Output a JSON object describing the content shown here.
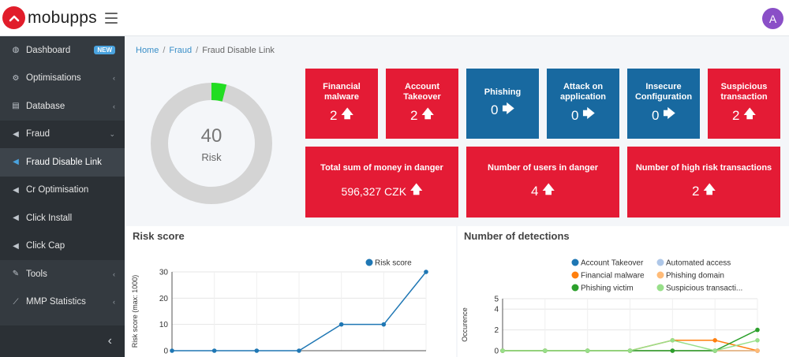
{
  "brand": {
    "name": "mobupps",
    "avatar_initial": "A",
    "accent": "#e11d2a",
    "avatar_color": "#8a4fc7"
  },
  "sidebar": {
    "items": [
      {
        "label": "Dashboard",
        "icon": "dashboard-icon",
        "badge": "NEW"
      },
      {
        "label": "Optimisations",
        "icon": "cogs-icon",
        "arrow": "chevron-left"
      },
      {
        "label": "Database",
        "icon": "database-icon",
        "arrow": "chevron-left"
      },
      {
        "label": "Fraud",
        "icon": "bullhorn-icon",
        "arrow": "chevron-down"
      },
      {
        "label": "Fraud Disable Link",
        "icon": "bullhorn-icon"
      },
      {
        "label": "Cr Optimisation",
        "icon": "bullhorn-icon"
      },
      {
        "label": "Click Install",
        "icon": "bullhorn-icon"
      },
      {
        "label": "Click Cap",
        "icon": "bullhorn-icon"
      },
      {
        "label": "Tools",
        "icon": "wrench-icon",
        "arrow": "chevron-left"
      },
      {
        "label": "MMP Statistics",
        "icon": "line-chart-icon",
        "arrow": "chevron-left"
      }
    ]
  },
  "breadcrumb": {
    "home": "Home",
    "fraud": "Fraud",
    "current": "Fraud Disable Link"
  },
  "gauge": {
    "value": "40",
    "label": "Risk",
    "fill_fraction": 0.04
  },
  "tiles": {
    "financial_malware": {
      "title": "Financial malware",
      "value": "2",
      "trend": "up"
    },
    "account_takeover": {
      "title": "Account Takeover",
      "value": "2",
      "trend": "up"
    },
    "phishing": {
      "title": "Phishing",
      "value": "0",
      "trend": "flat"
    },
    "attack_on_application": {
      "title": "Attack on application",
      "value": "0",
      "trend": "flat"
    },
    "insecure_configuration": {
      "title": "Insecure Configuration",
      "value": "0",
      "trend": "flat"
    },
    "suspicious_transaction": {
      "title": "Suspicious transaction",
      "value": "2",
      "trend": "up"
    },
    "money_in_danger": {
      "title": "Total sum of money in danger",
      "value": "596,327 CZK",
      "trend": "up"
    },
    "users_in_danger": {
      "title": "Number of users in danger",
      "value": "4",
      "trend": "up"
    },
    "high_risk_transactions": {
      "title": "Number of high risk transactions",
      "value": "2",
      "trend": "up"
    }
  },
  "risk_panel": {
    "title": "Risk score"
  },
  "detections_panel": {
    "title": "Number of detections"
  },
  "chart_data": [
    {
      "type": "line",
      "title": "Risk score",
      "ylabel": "Risk score (max: 1000)",
      "xlabel": "",
      "ylim": [
        0,
        30
      ],
      "yticks": [
        "0",
        "10",
        "20",
        "30"
      ],
      "grid": true,
      "legend": "top-right",
      "series": [
        {
          "name": "Risk score",
          "color": "#1f77b4",
          "values": [
            0,
            0,
            0,
            0,
            10,
            10,
            30
          ]
        }
      ]
    },
    {
      "type": "line",
      "title": "Number of detections",
      "ylabel": "Occurence",
      "xlabel": "",
      "ylim": [
        0,
        5
      ],
      "yticks": [
        "0",
        "2",
        "4",
        "5"
      ],
      "grid": true,
      "legend": "top",
      "series": [
        {
          "name": "Account Takeover",
          "color": "#1f77b4",
          "values": [
            0,
            0,
            0,
            0,
            0,
            0,
            0
          ]
        },
        {
          "name": "Automated access",
          "color": "#aec7e8",
          "values": [
            0,
            0,
            0,
            0,
            0,
            0,
            0
          ]
        },
        {
          "name": "Financial malware",
          "color": "#ff7f0e",
          "values": [
            0,
            0,
            0,
            0,
            1,
            1,
            0
          ]
        },
        {
          "name": "Phishing domain",
          "color": "#ffbb78",
          "values": [
            0,
            0,
            0,
            0,
            0,
            0,
            0
          ]
        },
        {
          "name": "Phishing victim",
          "color": "#2ca02c",
          "values": [
            0,
            0,
            0,
            0,
            0,
            0,
            2
          ]
        },
        {
          "name": "Suspicious transacti...",
          "color": "#98df8a",
          "values": [
            0,
            0,
            0,
            0,
            1,
            0,
            1
          ]
        }
      ]
    }
  ]
}
